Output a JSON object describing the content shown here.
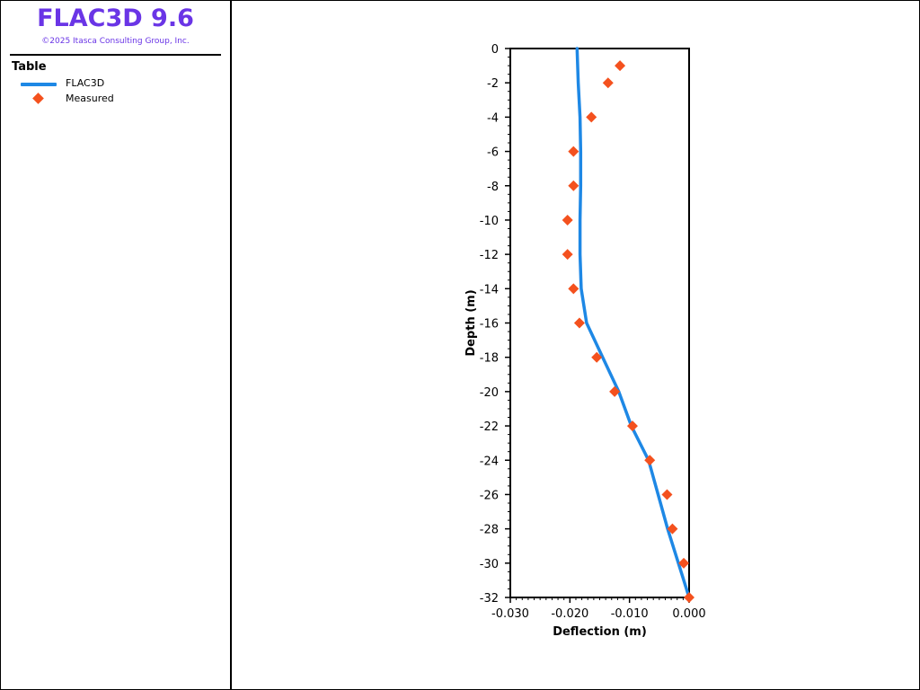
{
  "app": {
    "title": "FLAC3D 9.6",
    "copyright": "©2025 Itasca Consulting Group, Inc."
  },
  "legend": {
    "heading": "Table",
    "items": [
      {
        "label": "FLAC3D",
        "kind": "line",
        "color": "#1e88e5"
      },
      {
        "label": "Measured",
        "kind": "diamond",
        "color": "#f4511e"
      }
    ]
  },
  "chart_data": {
    "type": "scatter",
    "xlabel": "Deflection (m)",
    "ylabel": "Depth (m)",
    "xlim": [
      -0.03,
      0.0
    ],
    "ylim": [
      -32,
      0
    ],
    "x_ticks": [
      -0.03,
      -0.02,
      -0.01,
      0.0
    ],
    "x_tick_labels": [
      "-0.030",
      "-0.020",
      "-0.010",
      "0.000"
    ],
    "y_ticks": [
      0,
      -2,
      -4,
      -6,
      -8,
      -10,
      -12,
      -14,
      -16,
      -18,
      -20,
      -22,
      -24,
      -26,
      -28,
      -30,
      -32
    ],
    "y_tick_labels": [
      "0",
      "-2",
      "-4",
      "-6",
      "-8",
      "-10",
      "-12",
      "-14",
      "-16",
      "-18",
      "-20",
      "-22",
      "-24",
      "-26",
      "-28",
      "-30",
      "-32"
    ],
    "grid": false,
    "series": [
      {
        "name": "FLAC3D",
        "kind": "line",
        "color": "#1e88e5",
        "points": [
          {
            "x": -0.0188,
            "y": 0
          },
          {
            "x": -0.0186,
            "y": -2
          },
          {
            "x": -0.0183,
            "y": -4
          },
          {
            "x": -0.0182,
            "y": -6
          },
          {
            "x": -0.0182,
            "y": -8
          },
          {
            "x": -0.0183,
            "y": -10
          },
          {
            "x": -0.0183,
            "y": -12
          },
          {
            "x": -0.0181,
            "y": -14
          },
          {
            "x": -0.0172,
            "y": -16
          },
          {
            "x": -0.0145,
            "y": -18
          },
          {
            "x": -0.0118,
            "y": -20
          },
          {
            "x": -0.0097,
            "y": -22
          },
          {
            "x": -0.0068,
            "y": -24
          },
          {
            "x": -0.0052,
            "y": -26
          },
          {
            "x": -0.0036,
            "y": -28
          },
          {
            "x": -0.0018,
            "y": -30
          },
          {
            "x": 0.0,
            "y": -32
          }
        ]
      },
      {
        "name": "Measured",
        "kind": "diamond",
        "color": "#f4511e",
        "points": [
          {
            "x": -0.0116,
            "y": -1
          },
          {
            "x": -0.0136,
            "y": -2
          },
          {
            "x": -0.0164,
            "y": -4
          },
          {
            "x": -0.0194,
            "y": -6
          },
          {
            "x": -0.0194,
            "y": -8
          },
          {
            "x": -0.0204,
            "y": -10
          },
          {
            "x": -0.0204,
            "y": -12
          },
          {
            "x": -0.0194,
            "y": -14
          },
          {
            "x": -0.0184,
            "y": -16
          },
          {
            "x": -0.0155,
            "y": -18
          },
          {
            "x": -0.0125,
            "y": -20
          },
          {
            "x": -0.0095,
            "y": -22
          },
          {
            "x": -0.0066,
            "y": -24
          },
          {
            "x": -0.0037,
            "y": -26
          },
          {
            "x": -0.0028,
            "y": -28
          },
          {
            "x": -0.0009,
            "y": -30
          },
          {
            "x": 0.0,
            "y": -32
          }
        ]
      }
    ]
  }
}
